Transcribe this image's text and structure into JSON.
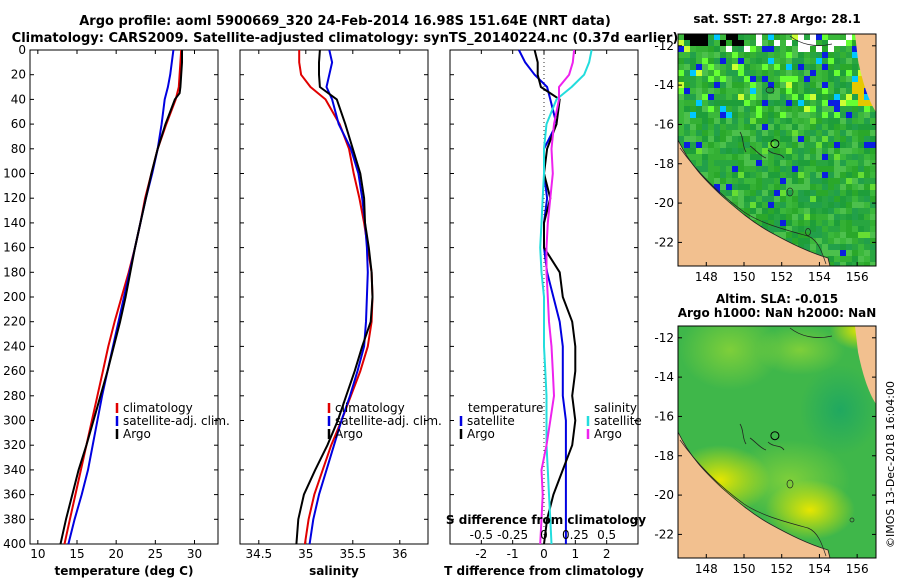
{
  "title": {
    "line1": "Argo profile: aoml 5900669_320 24-Feb-2014 16.98S 151.64E (NRT data)",
    "line2": "Climatology: CARS2009. Satellite-adjusted climatology: synTS_20140224.nc (0.37d earlier)"
  },
  "colors": {
    "climatology": "#e00000",
    "satellite": "#0000e0",
    "argo": "#000000",
    "sal_satellite": "#22dddd",
    "sal_argo": "#ee22ee",
    "land": "#f2c08f"
  },
  "credit": "©IMOS 13-Dec-2018 16:04:00",
  "depth_ticks": [
    0,
    20,
    40,
    60,
    80,
    100,
    120,
    140,
    160,
    180,
    200,
    220,
    240,
    260,
    280,
    300,
    320,
    340,
    360,
    380,
    400
  ],
  "chart_data": [
    {
      "type": "line",
      "id": "temperature",
      "xlabel": "temperature (deg C)",
      "ylabel": "depth",
      "xlim": [
        9,
        33
      ],
      "ylim": [
        400,
        0
      ],
      "xticks": [
        10,
        15,
        20,
        25,
        30
      ],
      "legend": [
        "climatology",
        "satellite-adj. clim.",
        "Argo"
      ],
      "legend_position": "lower-right",
      "series": [
        {
          "name": "climatology",
          "color": "#e00000",
          "depth": [
            0,
            10,
            20,
            30,
            40,
            60,
            80,
            100,
            120,
            140,
            160,
            180,
            200,
            220,
            240,
            260,
            280,
            300,
            320,
            340,
            360,
            380,
            400
          ],
          "values": [
            28.3,
            28.2,
            28.1,
            28.0,
            27.6,
            26.4,
            25.3,
            24.5,
            23.7,
            23.1,
            22.4,
            21.6,
            20.7,
            19.8,
            19.0,
            18.3,
            17.6,
            16.9,
            16.2,
            15.5,
            14.8,
            14.1,
            13.4
          ]
        },
        {
          "name": "satellite-adj. clim.",
          "color": "#0000e0",
          "depth": [
            0,
            10,
            20,
            30,
            40,
            60,
            80,
            100,
            120,
            140,
            160,
            180,
            200,
            220,
            240,
            260,
            280,
            300,
            320,
            340,
            360,
            380,
            400
          ],
          "values": [
            27.3,
            27.1,
            26.9,
            26.6,
            26.2,
            25.8,
            25.3,
            24.6,
            23.8,
            23.1,
            22.4,
            21.7,
            21.0,
            20.3,
            19.6,
            18.9,
            18.2,
            17.6,
            17.0,
            16.4,
            15.6,
            14.7,
            13.9
          ]
        },
        {
          "name": "Argo",
          "color": "#000000",
          "depth": [
            0,
            10,
            20,
            30,
            35,
            40,
            60,
            80,
            100,
            120,
            140,
            160,
            180,
            200,
            220,
            240,
            260,
            280,
            300,
            320,
            340,
            360,
            380,
            400
          ],
          "values": [
            28.4,
            28.4,
            28.3,
            28.2,
            28.1,
            27.5,
            26.3,
            25.3,
            24.5,
            23.8,
            23.1,
            22.4,
            21.8,
            21.2,
            20.5,
            19.7,
            18.9,
            18.0,
            17.1,
            16.2,
            15.2,
            14.4,
            13.6,
            12.9
          ]
        }
      ]
    },
    {
      "type": "line",
      "id": "salinity",
      "xlabel": "salinity",
      "ylabel": "depth",
      "xlim": [
        34.3,
        36.3
      ],
      "ylim": [
        400,
        0
      ],
      "xticks": [
        34.5,
        35,
        35.5,
        36
      ],
      "legend": [
        "climatology",
        "satellite-adj. clim.",
        "Argo"
      ],
      "legend_position": "lower-right",
      "series": [
        {
          "name": "climatology",
          "color": "#e00000",
          "depth": [
            0,
            10,
            20,
            30,
            40,
            60,
            80,
            100,
            120,
            140,
            160,
            180,
            200,
            220,
            240,
            260,
            280,
            300,
            320,
            340,
            360,
            380,
            400
          ],
          "values": [
            34.93,
            34.93,
            34.95,
            35.05,
            35.21,
            35.36,
            35.46,
            35.51,
            35.57,
            35.62,
            35.66,
            35.7,
            35.71,
            35.7,
            35.66,
            35.58,
            35.48,
            35.38,
            35.27,
            35.18,
            35.09,
            35.03,
            34.99
          ]
        },
        {
          "name": "satellite-adj. clim.",
          "color": "#0000e0",
          "depth": [
            0,
            10,
            20,
            30,
            40,
            60,
            80,
            100,
            120,
            140,
            160,
            180,
            200,
            220,
            240,
            260,
            280,
            300,
            320,
            340,
            360,
            380,
            400
          ],
          "values": [
            35.25,
            35.28,
            35.25,
            35.22,
            35.28,
            35.35,
            35.48,
            35.56,
            35.6,
            35.63,
            35.65,
            35.66,
            35.65,
            35.64,
            35.62,
            35.55,
            35.47,
            35.38,
            35.3,
            35.22,
            35.14,
            35.08,
            35.04
          ]
        },
        {
          "name": "Argo",
          "color": "#000000",
          "depth": [
            0,
            10,
            20,
            30,
            40,
            60,
            80,
            100,
            120,
            140,
            160,
            180,
            200,
            220,
            240,
            260,
            280,
            300,
            320,
            340,
            360,
            380,
            400
          ],
          "values": [
            35.15,
            35.14,
            35.14,
            35.15,
            35.33,
            35.42,
            35.5,
            35.58,
            35.62,
            35.63,
            35.67,
            35.7,
            35.71,
            35.69,
            35.6,
            35.52,
            35.43,
            35.34,
            35.23,
            35.1,
            34.98,
            34.92,
            34.9
          ]
        }
      ]
    },
    {
      "type": "line",
      "id": "difference",
      "xlabel": "T difference from climatology",
      "xlabel2": "S difference from climatology",
      "ylabel": "depth",
      "xlim": [
        -3,
        3
      ],
      "xlim_s": [
        -0.75,
        0.75
      ],
      "ylim": [
        400,
        0
      ],
      "xticks": [
        -2,
        -1,
        0,
        1,
        2
      ],
      "xticks_s": [
        -0.5,
        -0.25,
        0,
        0.25,
        0.5
      ],
      "xtick_labels_s": [
        "-0.5",
        "-0.25",
        "0",
        "0.25",
        "0.5"
      ],
      "legend_temperature_title": "temperature",
      "legend_salinity_title": "salinity",
      "legend_temperature": [
        "satellite",
        "Argo"
      ],
      "legend_salinity": [
        "satellite",
        "Argo"
      ],
      "series": [
        {
          "name": "temperature satellite",
          "color": "#0000e0",
          "depth": [
            0,
            10,
            20,
            30,
            40,
            60,
            80,
            100,
            120,
            140,
            160,
            180,
            200,
            220,
            240,
            260,
            280,
            300,
            320,
            340,
            360,
            380,
            400
          ],
          "values": [
            -0.8,
            -0.6,
            -0.3,
            0.1,
            0.2,
            0.4,
            0.0,
            0.0,
            0.1,
            0.0,
            0.0,
            0.1,
            0.3,
            0.5,
            0.6,
            0.6,
            0.6,
            0.7,
            0.7,
            0.7,
            0.7,
            0.7,
            0.7
          ]
        },
        {
          "name": "temperature Argo",
          "color": "#000000",
          "depth": [
            0,
            10,
            20,
            30,
            40,
            60,
            80,
            100,
            120,
            140,
            160,
            180,
            200,
            220,
            240,
            260,
            280,
            300,
            320,
            340,
            360,
            380,
            400
          ],
          "values": [
            -0.3,
            -0.2,
            -0.2,
            -0.1,
            0.5,
            0.4,
            0.1,
            0.0,
            0.2,
            0.0,
            0.0,
            0.5,
            0.6,
            0.9,
            1.0,
            1.0,
            0.9,
            1.0,
            0.9,
            0.6,
            0.3,
            0.1,
            0.0
          ]
        },
        {
          "name": "salinity satellite",
          "color": "#22dddd",
          "depth": [
            0,
            10,
            20,
            30,
            40,
            60,
            80,
            100,
            120,
            140,
            160,
            180,
            200,
            220,
            240,
            260,
            280,
            300,
            320,
            340,
            360,
            380,
            400
          ],
          "values": [
            0.38,
            0.36,
            0.32,
            0.22,
            0.1,
            0.02,
            0.0,
            0.0,
            -0.01,
            -0.02,
            -0.03,
            -0.02,
            0.0,
            0.0,
            0.0,
            0.01,
            0.02,
            0.02,
            0.02,
            0.03,
            0.04,
            0.05,
            0.06
          ]
        },
        {
          "name": "salinity Argo",
          "color": "#ee22ee",
          "depth": [
            0,
            10,
            20,
            30,
            40,
            60,
            80,
            100,
            120,
            140,
            160,
            180,
            200,
            220,
            240,
            260,
            280,
            300,
            320,
            340,
            360,
            380,
            400
          ],
          "values": [
            0.24,
            0.23,
            0.2,
            0.12,
            0.12,
            0.08,
            0.06,
            0.07,
            0.05,
            0.03,
            0.02,
            0.02,
            0.03,
            0.04,
            0.06,
            0.07,
            0.08,
            0.05,
            0.02,
            -0.02,
            -0.01,
            -0.02,
            -0.03
          ]
        }
      ]
    },
    {
      "type": "heatmap",
      "id": "sst_map",
      "title": "sat. SST: 27.8 Argo: 28.1",
      "xticks": [
        148,
        150,
        152,
        154,
        156
      ],
      "yticks": [
        -12,
        -14,
        -16,
        -18,
        -20,
        -22
      ],
      "xlim": [
        146.5,
        157
      ],
      "ylim": [
        -23.2,
        -11.4
      ]
    },
    {
      "type": "heatmap",
      "id": "sla_map",
      "title": "Altim. SLA: -0.015",
      "subtitle": "Argo h1000: NaN h2000: NaN",
      "xticks": [
        148,
        150,
        152,
        154,
        156
      ],
      "yticks": [
        -12,
        -14,
        -16,
        -18,
        -20,
        -22
      ],
      "xlim": [
        146.5,
        157
      ],
      "ylim": [
        -23.2,
        -11.4
      ]
    }
  ]
}
